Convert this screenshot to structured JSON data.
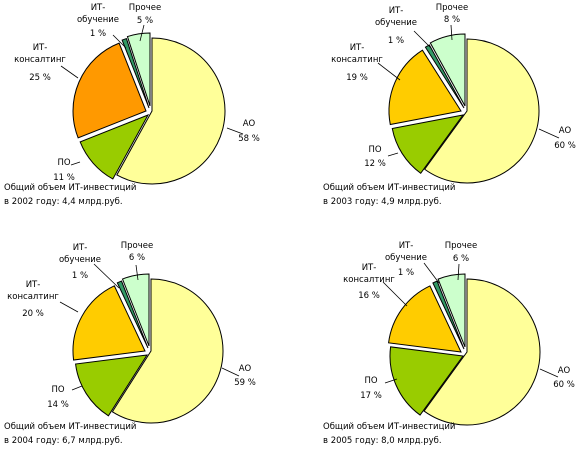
{
  "colors": {
    "AO": "#ffff99",
    "PO": "#99cc00",
    "IT-konsalting-2002": "#ff9900",
    "IT-konsalting": "#ffcc00",
    "IT-obuchenie": "#339966",
    "Prochee": "#ccffcc",
    "outline": "#000000"
  },
  "chart_data": [
    {
      "type": "pie",
      "caption_line1": "Общий объем ИТ-инвестиций",
      "caption_line2": "в 2002 году: 4,4 млрд.руб.",
      "slices": [
        {
          "key": "AO",
          "name_lines": [
            "АО"
          ],
          "value_label": "58 %",
          "value": 58
        },
        {
          "key": "PO",
          "name_lines": [
            "ПО"
          ],
          "value_label": "11 %",
          "value": 11
        },
        {
          "key": "IT-konsalting-2002",
          "name_lines": [
            "ИТ-",
            "консалтинг"
          ],
          "value_label": "25 %",
          "value": 25
        },
        {
          "key": "IT-obuchenie",
          "name_lines": [
            "ИТ-",
            "обучение"
          ],
          "value_label": "1 %",
          "value": 1
        },
        {
          "key": "Prochee",
          "name_lines": [
            "Прочее"
          ],
          "value_label": "5 %",
          "value": 5
        }
      ]
    },
    {
      "type": "pie",
      "caption_line1": "Общий объем ИТ-инвестиций",
      "caption_line2": "в 2003 году: 4,9 млрд.руб.",
      "slices": [
        {
          "key": "AO",
          "name_lines": [
            "АО"
          ],
          "value_label": "60 %",
          "value": 60
        },
        {
          "key": "PO",
          "name_lines": [
            "ПО"
          ],
          "value_label": "12 %",
          "value": 12
        },
        {
          "key": "IT-konsalting",
          "name_lines": [
            "ИТ-",
            "консалтинг"
          ],
          "value_label": "19 %",
          "value": 19
        },
        {
          "key": "IT-obuchenie",
          "name_lines": [
            "ИТ-",
            "обучение"
          ],
          "value_label": "1 %",
          "value": 1
        },
        {
          "key": "Prochee",
          "name_lines": [
            "Прочее"
          ],
          "value_label": "8 %",
          "value": 8
        }
      ]
    },
    {
      "type": "pie",
      "caption_line1": "Общий объем ИТ-инвестиций",
      "caption_line2": "в 2004 году: 6,7 млрд.руб.",
      "slices": [
        {
          "key": "AO",
          "name_lines": [
            "АО"
          ],
          "value_label": "59 %",
          "value": 59
        },
        {
          "key": "PO",
          "name_lines": [
            "ПО"
          ],
          "value_label": "14 %",
          "value": 14
        },
        {
          "key": "IT-konsalting",
          "name_lines": [
            "ИТ-",
            "консалтинг"
          ],
          "value_label": "20 %",
          "value": 20
        },
        {
          "key": "IT-obuchenie",
          "name_lines": [
            "ИТ-",
            "обучение"
          ],
          "value_label": "1 %",
          "value": 1
        },
        {
          "key": "Prochee",
          "name_lines": [
            "Прочее"
          ],
          "value_label": "6 %",
          "value": 6
        }
      ]
    },
    {
      "type": "pie",
      "caption_line1": "Общий объем ИТ-инвестиций",
      "caption_line2": "в 2005 году: 8,0 млрд.руб.",
      "slices": [
        {
          "key": "AO",
          "name_lines": [
            "АО"
          ],
          "value_label": "60 %",
          "value": 60
        },
        {
          "key": "PO",
          "name_lines": [
            "ПО"
          ],
          "value_label": "17 %",
          "value": 17
        },
        {
          "key": "IT-konsalting",
          "name_lines": [
            "ИТ-",
            "консалтинг"
          ],
          "value_label": "16 %",
          "value": 16
        },
        {
          "key": "IT-obuchenie",
          "name_lines": [
            "ИТ-",
            "обучение"
          ],
          "value_label": "1 %",
          "value": 1
        },
        {
          "key": "Prochee",
          "name_lines": [
            "Прочее"
          ],
          "value_label": "6 %",
          "value": 6
        }
      ]
    }
  ]
}
